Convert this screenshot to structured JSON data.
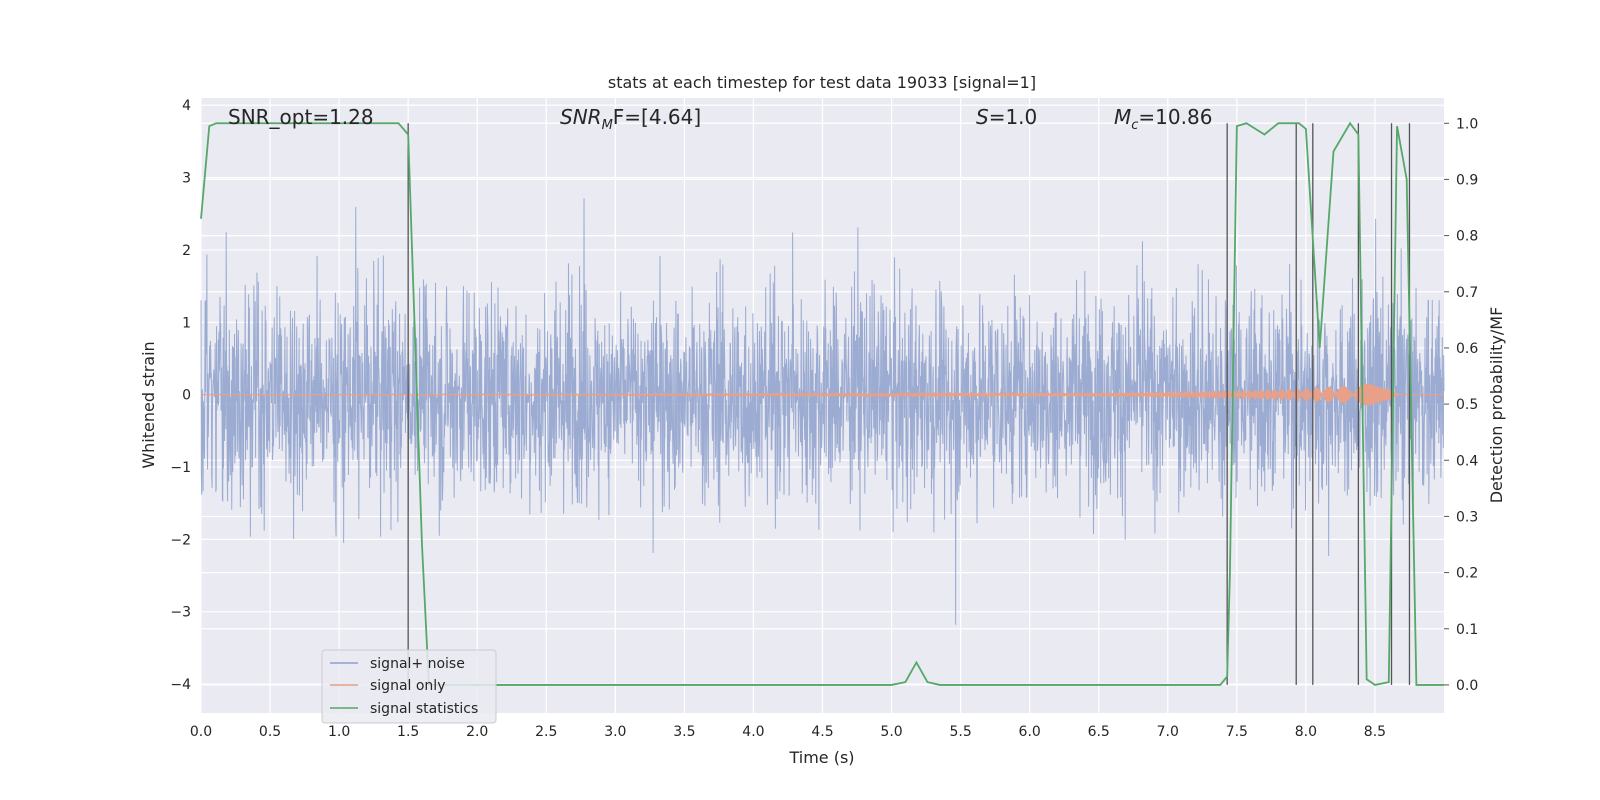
{
  "chart_data": {
    "type": "line",
    "title": "stats at each timestep for test data 19033 [signal=1]",
    "xlabel": "Time (s)",
    "ylabel": "Whitened strain",
    "ylabel_right": "Detection probability/MF",
    "xlim": [
      0,
      9.0
    ],
    "ylim": [
      -4.4,
      4.1
    ],
    "ylim_right": [
      -0.05,
      1.045
    ],
    "x_ticks": [
      "0.0",
      "0.5",
      "1.0",
      "1.5",
      "2.0",
      "2.5",
      "3.0",
      "3.5",
      "4.0",
      "4.5",
      "5.0",
      "5.5",
      "6.0",
      "6.5",
      "7.0",
      "7.5",
      "8.0",
      "8.5"
    ],
    "y_ticks": [
      "−4",
      "−3",
      "−2",
      "−1",
      "0",
      "1",
      "2",
      "3",
      "4"
    ],
    "y_ticks_right": [
      "0.0",
      "0.1",
      "0.2",
      "0.3",
      "0.4",
      "0.5",
      "0.6",
      "0.7",
      "0.8",
      "0.9",
      "1.0"
    ],
    "grid": true,
    "legend_position": "lower-left",
    "annotations": [
      {
        "id": "snr_opt",
        "text": "SNR_opt=1.28",
        "x": 0.2
      },
      {
        "id": "snr_mf",
        "text": "F=[4.64]",
        "prefix": "SNR",
        "sub": "M",
        "x": 2.6
      },
      {
        "id": "s",
        "text": "=1.0",
        "prefix": "S",
        "x": 5.6
      },
      {
        "id": "mc",
        "text": "=10.86",
        "prefix": "M",
        "sub": "c",
        "x": 6.6
      }
    ],
    "series": [
      {
        "name": "signal+ noise",
        "color": "#8da0cb",
        "axis": "left",
        "description": "dense noise trace, amplitude roughly within -3.6 to 3.8"
      },
      {
        "name": "signal only",
        "color": "#e8a088",
        "axis": "left",
        "x": [
          0,
          6.5,
          7.0,
          7.5,
          8.0,
          8.3,
          8.6,
          8.67,
          9.0
        ],
        "amplitude": [
          0.0,
          0.02,
          0.04,
          0.06,
          0.09,
          0.12,
          0.18,
          0.0,
          0.0
        ]
      },
      {
        "name": "signal statistics",
        "color": "#55a868",
        "axis": "right",
        "x": [
          0.0,
          0.06,
          0.11,
          0.2,
          1.0,
          1.43,
          1.5,
          1.6,
          1.65,
          2.0,
          3.0,
          4.0,
          5.0,
          5.1,
          5.18,
          5.26,
          5.35,
          6.0,
          7.0,
          7.38,
          7.43,
          7.45,
          7.5,
          7.57,
          7.7,
          7.8,
          7.95,
          8.0,
          8.1,
          8.2,
          8.32,
          8.38,
          8.44,
          8.5,
          8.6,
          8.66,
          8.73,
          8.8,
          8.9,
          9.0
        ],
        "y": [
          0.83,
          0.995,
          1.0,
          1.0,
          1.0,
          1.0,
          0.98,
          0.25,
          0.0,
          0.0,
          0.0,
          0.0,
          0.0,
          0.005,
          0.04,
          0.005,
          0.0,
          0.0,
          0.0,
          0.0,
          0.015,
          0.2,
          0.995,
          1.0,
          0.98,
          1.0,
          1.0,
          0.99,
          0.6,
          0.95,
          1.0,
          0.98,
          0.01,
          0.0,
          0.005,
          0.995,
          0.9,
          0.0,
          0.0,
          0.0
        ]
      }
    ],
    "vertical_lines_x": [
      1.5,
      7.43,
      7.93,
      8.05,
      8.38,
      8.62,
      8.75
    ]
  }
}
